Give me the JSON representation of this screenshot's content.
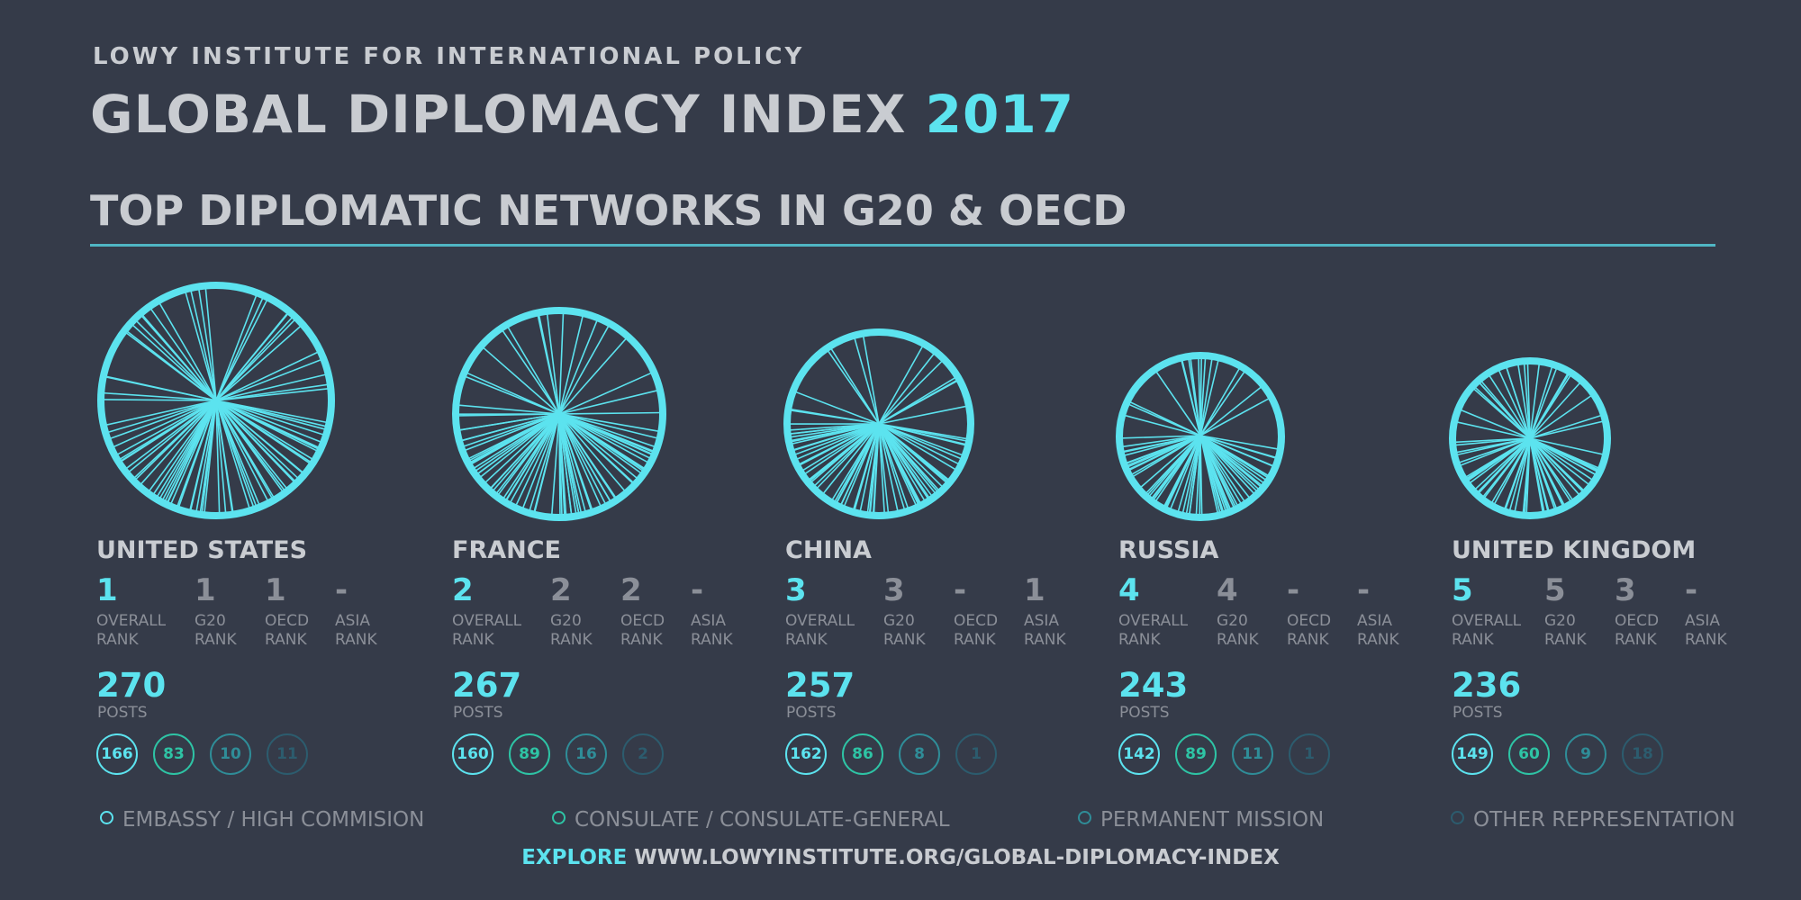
{
  "header": {
    "org": "LOWY INSTITUTE FOR INTERNATIONAL POLICY",
    "title": "GLOBAL DIPLOMACY INDEX",
    "year": "2017",
    "subtitle": "TOP DIPLOMATIC NETWORKS IN G20 & OECD"
  },
  "rank_labels": {
    "overall": [
      "OVERALL",
      "RANK"
    ],
    "g20": [
      "G20",
      "RANK"
    ],
    "oecd": [
      "OECD",
      "RANK"
    ],
    "asia": [
      "ASIA",
      "RANK"
    ]
  },
  "posts_label": "POSTS",
  "countries": [
    {
      "name": "UNITED STATES",
      "overall": "1",
      "g20": "1",
      "oecd": "1",
      "asia": "-",
      "posts": "270",
      "embassy": "166",
      "consulate": "83",
      "mission": "10",
      "other": "11"
    },
    {
      "name": "FRANCE",
      "overall": "2",
      "g20": "2",
      "oecd": "2",
      "asia": "-",
      "posts": "267",
      "embassy": "160",
      "consulate": "89",
      "mission": "16",
      "other": "2"
    },
    {
      "name": "CHINA",
      "overall": "3",
      "g20": "3",
      "oecd": "-",
      "asia": "1",
      "posts": "257",
      "embassy": "162",
      "consulate": "86",
      "mission": "8",
      "other": "1"
    },
    {
      "name": "RUSSIA",
      "overall": "4",
      "g20": "4",
      "oecd": "-",
      "asia": "-",
      "posts": "243",
      "embassy": "142",
      "consulate": "89",
      "mission": "11",
      "other": "1"
    },
    {
      "name": "UNITED KINGDOM",
      "overall": "5",
      "g20": "5",
      "oecd": "3",
      "asia": "-",
      "posts": "236",
      "embassy": "149",
      "consulate": "60",
      "mission": "9",
      "other": "18"
    }
  ],
  "legend": {
    "embassy": "EMBASSY / HIGH COMMISION",
    "consulate": "CONSULATE / CONSULATE-GENERAL",
    "mission": "PERMANENT MISSION",
    "other": "OTHER REPRESENTATION"
  },
  "footer": {
    "explore": "EXPLORE",
    "url": "WWW.LOWYINSTITUTE.ORG/GLOBAL-DIPLOMACY-INDEX"
  },
  "colors": {
    "background": "#353b49",
    "accent": "#5ce3ef",
    "embassy": "#5ce3ef",
    "consulate": "#2ec4a5",
    "mission": "#2f8d98",
    "other": "#2c5c6e"
  }
}
